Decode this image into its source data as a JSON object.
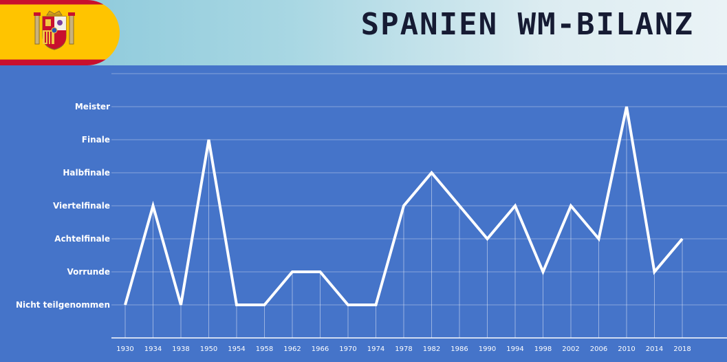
{
  "header": {
    "title": "Spanien WM-Bilanz",
    "flag_icon": "spain-flag-icon"
  },
  "colors": {
    "background": "#4574c9",
    "line": "#ffffff",
    "flag_red": "#c8102e",
    "flag_yellow": "#ffc400",
    "title": "#161b33"
  },
  "chart_data": {
    "type": "line",
    "title": "Spanien WM-Bilanz",
    "xlabel": "",
    "ylabel": "",
    "grid": true,
    "legend": "none",
    "y_categories": [
      "Nicht teilgenommen",
      "Vorrunde",
      "Achtelfinale",
      "Viertelfinale",
      "Halbfinale",
      "Finale",
      "Meister"
    ],
    "x": [
      "1930",
      "1934",
      "1938",
      "1950",
      "1954",
      "1958",
      "1962",
      "1966",
      "1970",
      "1974",
      "1978",
      "1982",
      "1986",
      "1990",
      "1994",
      "1998",
      "2002",
      "2006",
      "2010",
      "2014",
      "2018"
    ],
    "series": [
      {
        "values": [
          "Nicht teilgenommen",
          "Viertelfinale",
          "Nicht teilgenommen",
          "Finale",
          "Nicht teilgenommen",
          "Nicht teilgenommen",
          "Vorrunde",
          "Vorrunde",
          "Nicht teilgenommen",
          "Nicht teilgenommen",
          "Viertelfinale",
          "Halbfinale",
          "Viertelfinale",
          "Achtelfinale",
          "Viertelfinale",
          "Vorrunde",
          "Viertelfinale",
          "Achtelfinale",
          "Meister",
          "Vorrunde",
          "Achtelfinale"
        ]
      }
    ]
  }
}
